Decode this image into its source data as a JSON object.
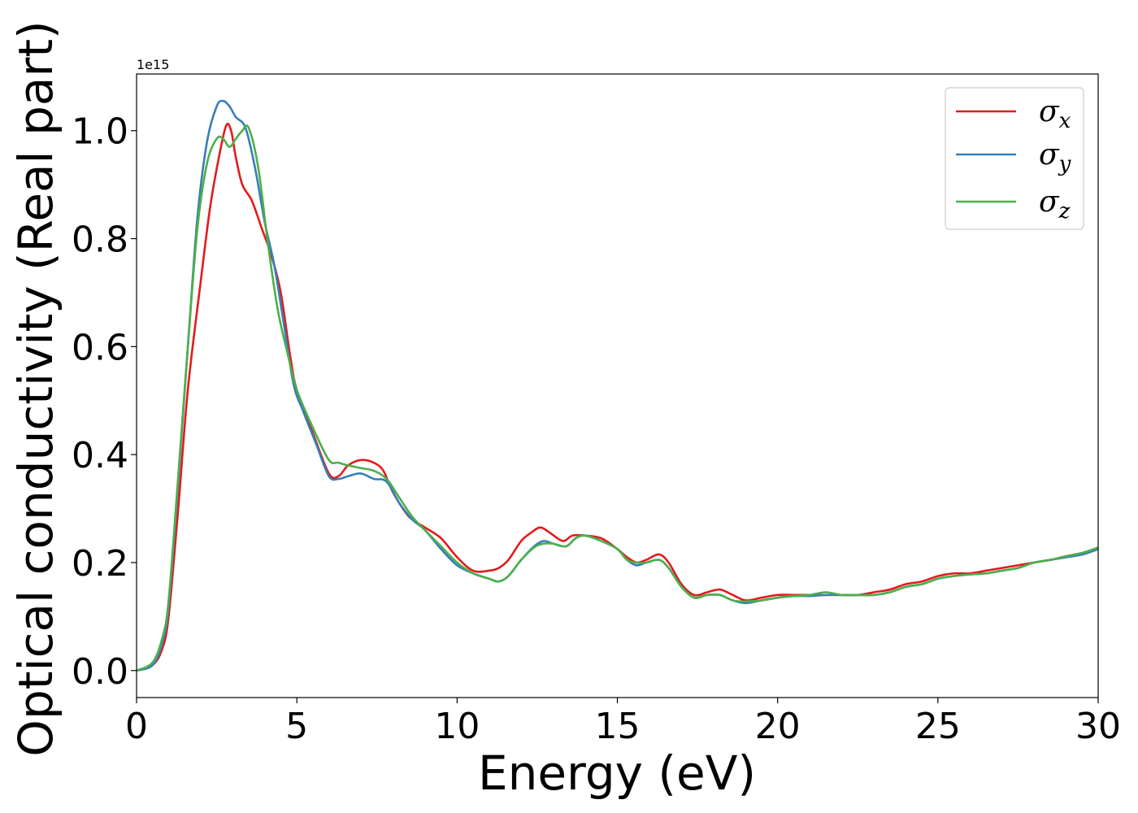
{
  "chart_data": {
    "type": "line",
    "xlabel": "Energy (eV)",
    "ylabel": "Optical conductivity (Real part)",
    "offset_text": "1e15",
    "xlim": [
      0,
      30
    ],
    "ylim": [
      -0.05,
      1.105
    ],
    "xticks": [
      0,
      5,
      10,
      15,
      20,
      25,
      30
    ],
    "xtick_labels": [
      "0",
      "5",
      "10",
      "15",
      "20",
      "25",
      "30"
    ],
    "yticks": [
      0.0,
      0.2,
      0.4,
      0.6,
      0.8,
      1.0
    ],
    "ytick_labels": [
      "0.0",
      "0.2",
      "0.4",
      "0.6",
      "0.8",
      "1.0"
    ],
    "grid": false,
    "legend_position": "top-right",
    "series": [
      {
        "name": "σx",
        "legend_symbol": "σ",
        "legend_subscript": "x",
        "color": "#e41a1c",
        "x": [
          0,
          0.5,
          0.8,
          1.0,
          1.3,
          1.6,
          2.0,
          2.3,
          2.6,
          2.8,
          2.95,
          3.1,
          3.3,
          3.6,
          3.9,
          4.2,
          4.5,
          4.8,
          5.0,
          5.5,
          6.0,
          6.3,
          6.6,
          7.0,
          7.4,
          7.7,
          8.0,
          8.5,
          9.0,
          9.5,
          10.0,
          10.5,
          11.0,
          11.3,
          11.6,
          12.0,
          12.3,
          12.6,
          12.9,
          13.3,
          13.6,
          14.0,
          14.5,
          15.0,
          15.3,
          15.6,
          15.9,
          16.3,
          16.6,
          17.0,
          17.4,
          17.8,
          18.2,
          18.6,
          19.0,
          19.5,
          20.0,
          20.5,
          21.0,
          21.5,
          22.0,
          22.5,
          23.0,
          23.5,
          24.0,
          24.5,
          25.0,
          25.5,
          26.0,
          26.5,
          27.0,
          27.5,
          28.0,
          28.5,
          29.0,
          29.5,
          30.0
        ],
        "values": [
          0.0,
          0.01,
          0.04,
          0.1,
          0.3,
          0.52,
          0.72,
          0.86,
          0.96,
          1.01,
          1.0,
          0.95,
          0.9,
          0.87,
          0.82,
          0.77,
          0.7,
          0.58,
          0.52,
          0.44,
          0.365,
          0.36,
          0.38,
          0.39,
          0.385,
          0.37,
          0.33,
          0.285,
          0.265,
          0.245,
          0.21,
          0.185,
          0.185,
          0.19,
          0.205,
          0.24,
          0.255,
          0.265,
          0.255,
          0.24,
          0.25,
          0.25,
          0.245,
          0.225,
          0.21,
          0.2,
          0.205,
          0.215,
          0.2,
          0.16,
          0.14,
          0.145,
          0.15,
          0.14,
          0.13,
          0.135,
          0.14,
          0.14,
          0.14,
          0.14,
          0.14,
          0.14,
          0.145,
          0.15,
          0.16,
          0.165,
          0.175,
          0.18,
          0.18,
          0.185,
          0.19,
          0.195,
          0.2,
          0.205,
          0.21,
          0.215,
          0.225
        ]
      },
      {
        "name": "σy",
        "legend_symbol": "σ",
        "legend_subscript": "y",
        "color": "#377eb8",
        "x": [
          0,
          0.5,
          0.8,
          1.0,
          1.3,
          1.6,
          1.9,
          2.2,
          2.5,
          2.7,
          2.9,
          3.1,
          3.4,
          3.7,
          4.0,
          4.3,
          4.6,
          4.9,
          5.2,
          5.6,
          6.0,
          6.3,
          6.6,
          7.0,
          7.4,
          7.8,
          8.2,
          8.6,
          9.0,
          9.5,
          10.0,
          10.5,
          11.0,
          11.3,
          11.6,
          12.0,
          12.4,
          12.7,
          13.0,
          13.4,
          13.7,
          14.0,
          14.5,
          15.0,
          15.3,
          15.6,
          15.9,
          16.3,
          16.6,
          17.0,
          17.4,
          17.8,
          18.2,
          18.6,
          19.0,
          19.5,
          20.0,
          20.5,
          21.0,
          21.5,
          22.0,
          22.5,
          23.0,
          23.5,
          24.0,
          24.5,
          25.0,
          25.5,
          26.0,
          26.5,
          27.0,
          27.5,
          28.0,
          28.5,
          29.0,
          29.5,
          30.0
        ],
        "values": [
          0.0,
          0.01,
          0.05,
          0.12,
          0.35,
          0.6,
          0.84,
          0.98,
          1.045,
          1.055,
          1.045,
          1.025,
          1.005,
          0.93,
          0.83,
          0.75,
          0.64,
          0.53,
          0.48,
          0.42,
          0.36,
          0.355,
          0.36,
          0.365,
          0.355,
          0.35,
          0.31,
          0.28,
          0.26,
          0.225,
          0.195,
          0.18,
          0.17,
          0.165,
          0.175,
          0.205,
          0.23,
          0.24,
          0.235,
          0.23,
          0.245,
          0.25,
          0.24,
          0.225,
          0.205,
          0.195,
          0.2,
          0.205,
          0.19,
          0.155,
          0.135,
          0.14,
          0.14,
          0.13,
          0.125,
          0.13,
          0.135,
          0.138,
          0.138,
          0.14,
          0.14,
          0.14,
          0.14,
          0.145,
          0.155,
          0.16,
          0.17,
          0.175,
          0.178,
          0.18,
          0.185,
          0.19,
          0.2,
          0.205,
          0.21,
          0.215,
          0.225
        ]
      },
      {
        "name": "σz",
        "legend_symbol": "σ",
        "legend_subscript": "z",
        "color": "#4daf4a",
        "x": [
          0,
          0.5,
          0.8,
          1.0,
          1.3,
          1.6,
          1.9,
          2.2,
          2.5,
          2.7,
          2.9,
          3.1,
          3.3,
          3.5,
          3.8,
          4.1,
          4.4,
          4.7,
          5.0,
          5.5,
          6.0,
          6.3,
          6.6,
          7.0,
          7.4,
          7.8,
          8.2,
          8.6,
          9.0,
          9.5,
          10.0,
          10.5,
          11.0,
          11.3,
          11.6,
          12.0,
          12.4,
          12.7,
          13.0,
          13.4,
          13.7,
          14.0,
          14.5,
          15.0,
          15.3,
          15.6,
          15.9,
          16.3,
          16.6,
          17.0,
          17.4,
          17.8,
          18.2,
          18.6,
          19.0,
          19.5,
          20.0,
          20.5,
          21.0,
          21.5,
          22.0,
          22.5,
          23.0,
          23.5,
          24.0,
          24.5,
          25.0,
          25.5,
          26.0,
          26.5,
          27.0,
          27.5,
          28.0,
          28.5,
          29.0,
          29.5,
          30.0
        ],
        "values": [
          0.0,
          0.015,
          0.06,
          0.13,
          0.36,
          0.6,
          0.82,
          0.94,
          0.985,
          0.985,
          0.97,
          0.985,
          1.0,
          1.005,
          0.93,
          0.79,
          0.67,
          0.59,
          0.52,
          0.45,
          0.39,
          0.385,
          0.38,
          0.375,
          0.37,
          0.355,
          0.32,
          0.285,
          0.26,
          0.23,
          0.2,
          0.18,
          0.17,
          0.165,
          0.175,
          0.205,
          0.228,
          0.235,
          0.235,
          0.23,
          0.245,
          0.25,
          0.24,
          0.225,
          0.205,
          0.2,
          0.2,
          0.205,
          0.19,
          0.155,
          0.135,
          0.14,
          0.14,
          0.13,
          0.128,
          0.13,
          0.135,
          0.138,
          0.14,
          0.145,
          0.14,
          0.14,
          0.14,
          0.145,
          0.155,
          0.16,
          0.17,
          0.175,
          0.178,
          0.18,
          0.185,
          0.19,
          0.2,
          0.205,
          0.212,
          0.218,
          0.228
        ]
      }
    ]
  }
}
